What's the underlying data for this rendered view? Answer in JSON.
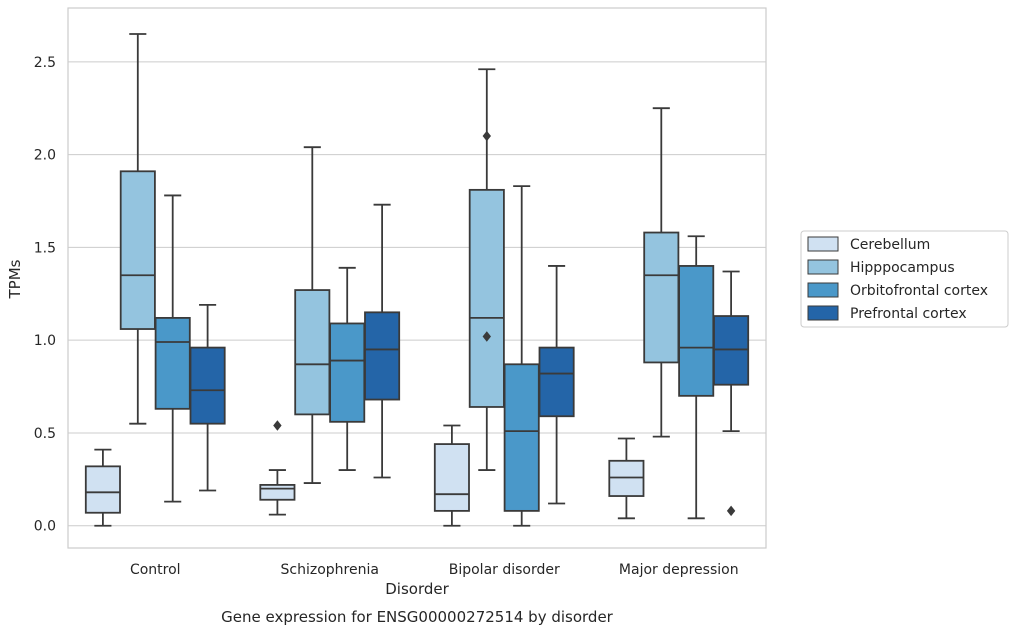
{
  "caption": "Gene expression for ENSG00000272514 by disorder",
  "chart_data": {
    "type": "box",
    "xlabel": "Disorder",
    "ylabel": "TPMs",
    "ylim": [
      -0.12,
      2.79
    ],
    "yticks": [
      0.0,
      0.5,
      1.0,
      1.5,
      2.0,
      2.5
    ],
    "ytick_labels": [
      "0.0",
      "0.5",
      "1.0",
      "1.5",
      "2.0",
      "2.5"
    ],
    "grid": "horizontal",
    "legend_position": "right",
    "categories": [
      "Control",
      "Schizophrenia",
      "Bipolar disorder",
      "Major depression"
    ],
    "series": [
      {
        "name": "Cerebellum",
        "color": "#d0e1f2",
        "boxes": [
          {
            "whislo": 0.0,
            "q1": 0.07,
            "med": 0.18,
            "q3": 0.32,
            "whishi": 0.41,
            "fliers": []
          },
          {
            "whislo": 0.06,
            "q1": 0.14,
            "med": 0.2,
            "q3": 0.22,
            "whishi": 0.3,
            "fliers": [
              0.54
            ]
          },
          {
            "whislo": 0.0,
            "q1": 0.08,
            "med": 0.17,
            "q3": 0.44,
            "whishi": 0.54,
            "fliers": []
          },
          {
            "whislo": 0.04,
            "q1": 0.16,
            "med": 0.26,
            "q3": 0.35,
            "whishi": 0.47,
            "fliers": []
          }
        ]
      },
      {
        "name": "Hipppocampus",
        "color": "#94c4df",
        "boxes": [
          {
            "whislo": 0.55,
            "q1": 1.06,
            "med": 1.35,
            "q3": 1.91,
            "whishi": 2.65,
            "fliers": []
          },
          {
            "whislo": 0.23,
            "q1": 0.6,
            "med": 0.87,
            "q3": 1.27,
            "whishi": 2.04,
            "fliers": []
          },
          {
            "whislo": 0.3,
            "q1": 0.64,
            "med": 1.12,
            "q3": 1.81,
            "whishi": 2.46,
            "fliers": [
              1.02,
              2.1
            ]
          },
          {
            "whislo": 0.48,
            "q1": 0.88,
            "med": 1.35,
            "q3": 1.58,
            "whishi": 2.25,
            "fliers": []
          }
        ]
      },
      {
        "name": "Orbitofrontal cortex",
        "color": "#4a98c9",
        "boxes": [
          {
            "whislo": 0.13,
            "q1": 0.63,
            "med": 0.99,
            "q3": 1.12,
            "whishi": 1.78,
            "fliers": []
          },
          {
            "whislo": 0.3,
            "q1": 0.56,
            "med": 0.89,
            "q3": 1.09,
            "whishi": 1.39,
            "fliers": []
          },
          {
            "whislo": 0.0,
            "q1": 0.08,
            "med": 0.51,
            "q3": 0.87,
            "whishi": 1.83,
            "fliers": []
          },
          {
            "whislo": 0.04,
            "q1": 0.7,
            "med": 0.96,
            "q3": 1.4,
            "whishi": 1.56,
            "fliers": []
          }
        ]
      },
      {
        "name": "Prefrontal cortex",
        "color": "#2465a8",
        "boxes": [
          {
            "whislo": 0.19,
            "q1": 0.55,
            "med": 0.73,
            "q3": 0.96,
            "whishi": 1.19,
            "fliers": []
          },
          {
            "whislo": 0.26,
            "q1": 0.68,
            "med": 0.95,
            "q3": 1.15,
            "whishi": 1.73,
            "fliers": []
          },
          {
            "whislo": 0.12,
            "q1": 0.59,
            "med": 0.82,
            "q3": 0.96,
            "whishi": 1.4,
            "fliers": []
          },
          {
            "whislo": 0.51,
            "q1": 0.76,
            "med": 0.95,
            "q3": 1.13,
            "whishi": 1.37,
            "fliers": [
              0.08
            ]
          }
        ]
      }
    ]
  }
}
